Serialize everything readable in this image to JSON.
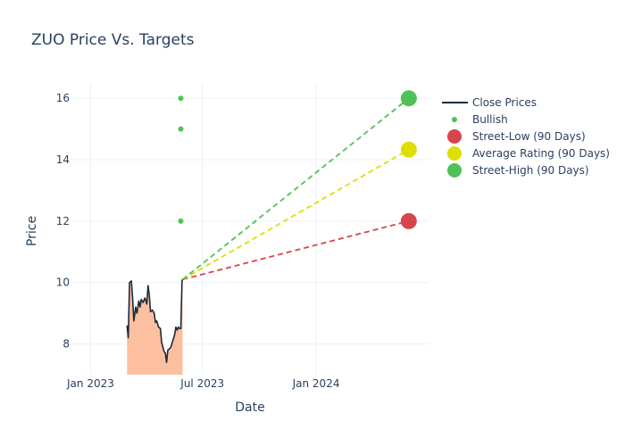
{
  "chart_data": {
    "type": "line",
    "title": "ZUO Price Vs. Targets",
    "xlabel": "Date",
    "ylabel": "Price",
    "xlim": [
      "2022-12-01",
      "2024-07-01"
    ],
    "ylim": [
      7.0,
      16.5
    ],
    "grid": true,
    "legend_position": "right",
    "x_ticks": [
      {
        "date": "2023-01-01",
        "label": "Jan 2023"
      },
      {
        "date": "2023-07-01",
        "label": "Jul 2023"
      },
      {
        "date": "2024-01-01",
        "label": "Jan 2024"
      }
    ],
    "y_ticks": [
      8,
      10,
      12,
      14,
      16
    ],
    "series": [
      {
        "name": "Close Prices",
        "kind": "line",
        "color": "#1f2a3c",
        "fill_color": "#fcbf9f",
        "points": [
          [
            "2023-03-01",
            8.6
          ],
          [
            "2023-03-03",
            8.2
          ],
          [
            "2023-03-05",
            10.0
          ],
          [
            "2023-03-08",
            10.05
          ],
          [
            "2023-03-10",
            9.5
          ],
          [
            "2023-03-12",
            8.75
          ],
          [
            "2023-03-15",
            9.2
          ],
          [
            "2023-03-17",
            9.0
          ],
          [
            "2023-03-20",
            9.4
          ],
          [
            "2023-03-22",
            9.2
          ],
          [
            "2023-03-24",
            9.45
          ],
          [
            "2023-03-27",
            9.35
          ],
          [
            "2023-03-30",
            9.5
          ],
          [
            "2023-04-02",
            9.3
          ],
          [
            "2023-04-04",
            9.9
          ],
          [
            "2023-04-06",
            9.6
          ],
          [
            "2023-04-08",
            9.05
          ],
          [
            "2023-04-11",
            9.1
          ],
          [
            "2023-04-14",
            9.0
          ],
          [
            "2023-04-16",
            8.7
          ],
          [
            "2023-04-18",
            8.75
          ],
          [
            "2023-04-21",
            8.55
          ],
          [
            "2023-04-24",
            8.5
          ],
          [
            "2023-04-26",
            8.05
          ],
          [
            "2023-04-28",
            7.9
          ],
          [
            "2023-04-30",
            7.75
          ],
          [
            "2023-05-02",
            7.7
          ],
          [
            "2023-05-04",
            7.4
          ],
          [
            "2023-05-06",
            7.8
          ],
          [
            "2023-05-09",
            7.85
          ],
          [
            "2023-05-11",
            7.9
          ],
          [
            "2023-05-14",
            8.1
          ],
          [
            "2023-05-17",
            8.3
          ],
          [
            "2023-05-19",
            8.55
          ],
          [
            "2023-05-21",
            8.45
          ],
          [
            "2023-05-23",
            8.55
          ],
          [
            "2023-05-25",
            8.5
          ],
          [
            "2023-05-27",
            8.5
          ],
          [
            "2023-05-29",
            10.05
          ],
          [
            "2023-05-30",
            10.1
          ]
        ]
      },
      {
        "name": "Bullish",
        "kind": "markers",
        "color": "#4fc257",
        "points": [
          [
            "2023-05-27",
            16.0
          ],
          [
            "2023-05-27",
            15.0
          ],
          [
            "2023-05-27",
            12.0
          ]
        ]
      },
      {
        "name": "Street-Low (90 Days)",
        "kind": "target",
        "color": "#d7454b",
        "points": [
          [
            "2023-05-30",
            10.1
          ],
          [
            "2024-05-30",
            12.0
          ]
        ]
      },
      {
        "name": "Average Rating (90 Days)",
        "kind": "target",
        "color": "#dede00",
        "points": [
          [
            "2023-05-30",
            10.1
          ],
          [
            "2024-05-30",
            14.33
          ]
        ]
      },
      {
        "name": "Street-High (90 Days)",
        "kind": "target",
        "color": "#4fc257",
        "points": [
          [
            "2023-05-30",
            10.1
          ],
          [
            "2024-05-30",
            16.0
          ]
        ]
      }
    ]
  }
}
